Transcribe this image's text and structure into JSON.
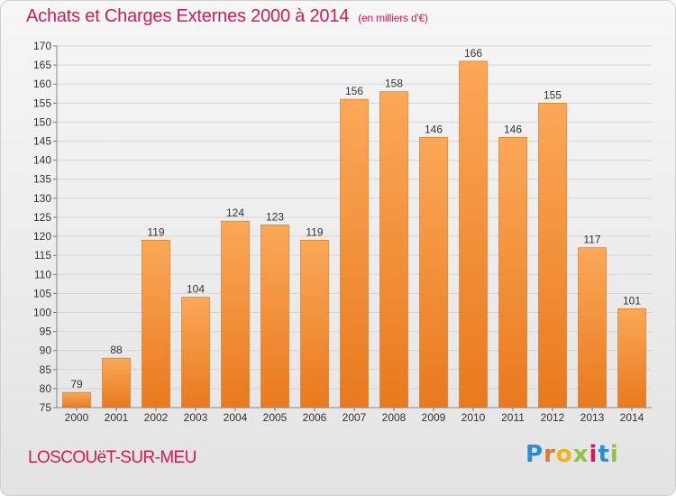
{
  "title": "Achats et Charges Externes 2000 à 2014",
  "subtitle": "(en milliers d'€)",
  "commune": "LOSCOUëT-SUR-MEU",
  "logo": {
    "letters": [
      "P",
      "r",
      "o",
      "x",
      "i",
      "t",
      "i"
    ],
    "colors": [
      "#2a8fd0",
      "#e8732a",
      "#f2b318",
      "#8cc63f",
      "#d3195a",
      "#2a8fd0",
      "#8cc63f"
    ]
  },
  "colors": {
    "title": "#d3195a",
    "bar_light": "#fba858",
    "bar_dark": "#e9791d"
  },
  "chart_data": {
    "type": "bar",
    "categories": [
      "2000",
      "2001",
      "2002",
      "2003",
      "2004",
      "2005",
      "2006",
      "2007",
      "2008",
      "2009",
      "2010",
      "2011",
      "2012",
      "2013",
      "2014"
    ],
    "values": [
      79,
      88,
      119,
      104,
      124,
      123,
      119,
      156,
      158,
      146,
      166,
      146,
      155,
      117,
      101
    ],
    "ylim": [
      75,
      170
    ],
    "yticks": [
      75,
      80,
      85,
      90,
      95,
      100,
      105,
      110,
      115,
      120,
      125,
      130,
      135,
      140,
      145,
      150,
      155,
      160,
      165,
      170
    ],
    "grid": true
  }
}
